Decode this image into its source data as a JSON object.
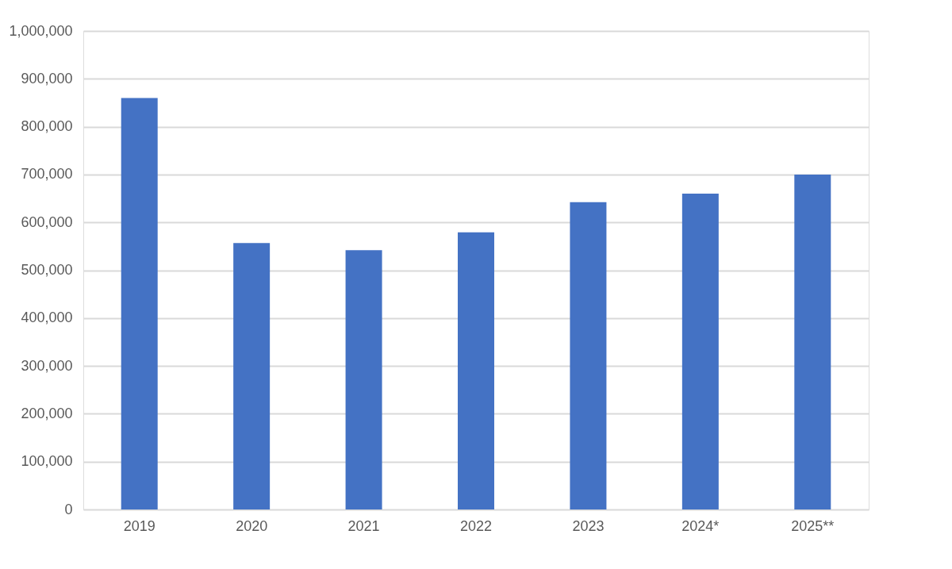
{
  "chart_data": {
    "type": "bar",
    "categories": [
      "2019",
      "2020",
      "2021",
      "2022",
      "2023",
      "2024*",
      "2025**"
    ],
    "values": [
      860000,
      557000,
      542000,
      579000,
      642000,
      660000,
      700000
    ],
    "color": "#4472c4",
    "ylim": [
      0,
      1000000
    ],
    "yticks": [
      {
        "value": 0,
        "label": "0"
      },
      {
        "value": 100000,
        "label": "100,000"
      },
      {
        "value": 200000,
        "label": "200,000"
      },
      {
        "value": 300000,
        "label": "300,000"
      },
      {
        "value": 400000,
        "label": "400,000"
      },
      {
        "value": 500000,
        "label": "500,000"
      },
      {
        "value": 600000,
        "label": "600,000"
      },
      {
        "value": 700000,
        "label": "700,000"
      },
      {
        "value": 800000,
        "label": "800,000"
      },
      {
        "value": 900000,
        "label": "900,000"
      },
      {
        "value": 1000000,
        "label": "1,000,000"
      }
    ],
    "grid": "y"
  }
}
